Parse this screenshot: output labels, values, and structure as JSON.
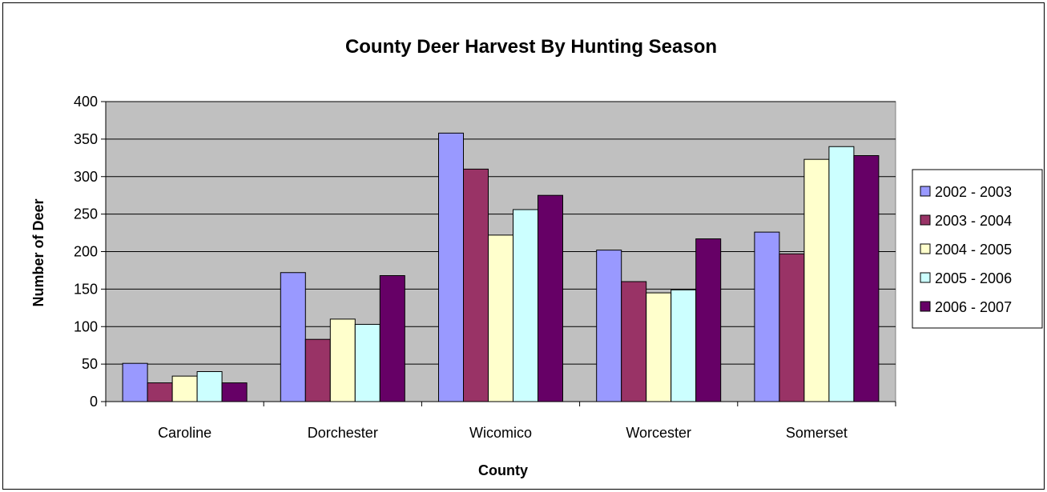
{
  "chart_data": {
    "type": "bar",
    "title": "County Deer Harvest By Hunting Season",
    "xlabel": "County",
    "ylabel": "Number of Deer",
    "categories": [
      "Caroline",
      "Dorchester",
      "Wicomico",
      "Worcester",
      "Somerset"
    ],
    "ylim": [
      0,
      400
    ],
    "yticks": [
      0,
      50,
      100,
      150,
      200,
      250,
      300,
      350,
      400
    ],
    "grid": true,
    "plot_background": "#c0c0c0",
    "legend_position": "right",
    "series": [
      {
        "name": "2002 - 2003",
        "color": "#9999ff",
        "values": [
          51,
          172,
          358,
          202,
          226
        ]
      },
      {
        "name": "2003 - 2004",
        "color": "#993366",
        "values": [
          25,
          83,
          310,
          160,
          197
        ]
      },
      {
        "name": "2004 - 2005",
        "color": "#ffffcc",
        "values": [
          34,
          110,
          222,
          145,
          323
        ]
      },
      {
        "name": "2005 - 2006",
        "color": "#ccffff",
        "values": [
          40,
          103,
          256,
          149,
          340
        ]
      },
      {
        "name": "2006 - 2007",
        "color": "#660066",
        "values": [
          25,
          168,
          275,
          217,
          328
        ]
      }
    ]
  }
}
